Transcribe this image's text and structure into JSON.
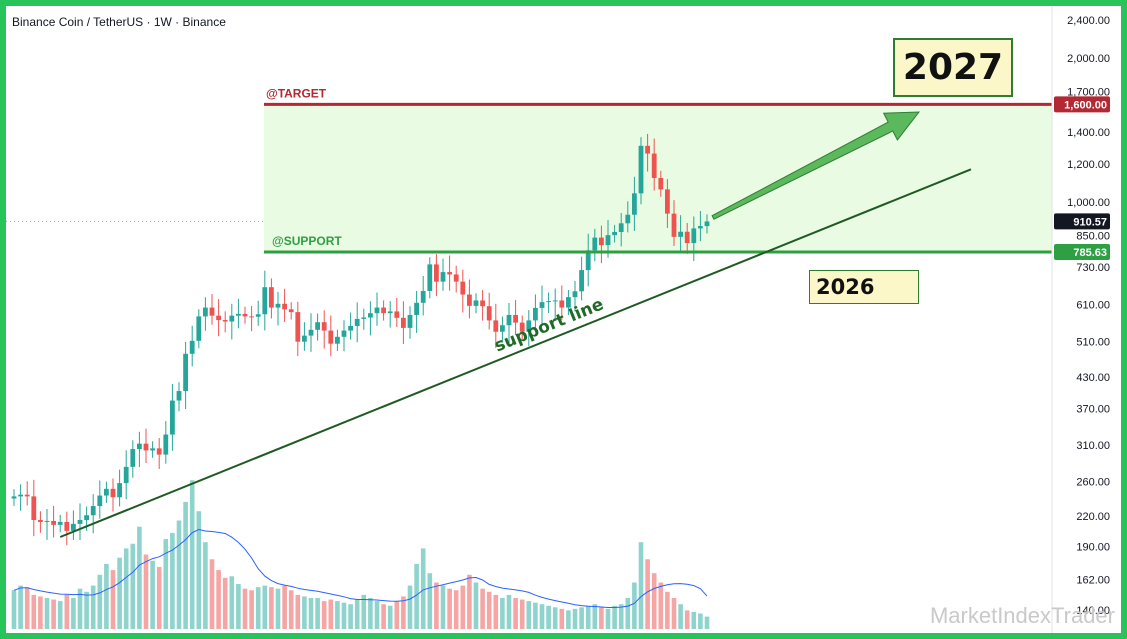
{
  "header": {
    "title": "Binance Coin / TetherUS · 1W · Binance"
  },
  "annotations": {
    "target_label": "@TARGET",
    "support_label": "@SUPPORT",
    "support_line_label": "support line",
    "year_box_top": "2027",
    "year_box_bottom": "2026"
  },
  "watermark": "MarketIndexTrader",
  "colors": {
    "up": "#26a69a",
    "down": "#ef5350",
    "target": "#b22833",
    "support": "#2ea043",
    "zone": "#e9fbe2",
    "trend": "#1f5a23",
    "ma": "#2962ff"
  },
  "chart_data": {
    "type": "candlestick",
    "scale": "log",
    "ylim": [
      140,
      2400
    ],
    "y_ticks": [
      "2,400.00",
      "2,000.00",
      "1,700.00",
      "1,400.00",
      "1,200.00",
      "1,000.00",
      "850.00",
      "730.00",
      "610.00",
      "510.00",
      "430.00",
      "370.00",
      "310.00",
      "260.00",
      "220.00",
      "190.00",
      "162.00",
      "140.00"
    ],
    "y_tick_values": [
      2400,
      2000,
      1700,
      1400,
      1200,
      1000,
      850,
      730,
      610,
      510,
      430,
      370,
      310,
      260,
      220,
      190,
      162,
      140
    ],
    "price_labels": [
      {
        "text": "1,600.00",
        "value": 1600,
        "color": "#b22833"
      },
      {
        "text": "910.57",
        "value": 910.57,
        "color": "#131722"
      },
      {
        "text": "785.63",
        "value": 785.63,
        "color": "#2ea043"
      }
    ],
    "levels": {
      "target": 1600,
      "support": 785.63,
      "current": 910.57
    },
    "closes": [
      242,
      244,
      242,
      216,
      214,
      215,
      211,
      214,
      205,
      212,
      216,
      221,
      231,
      243,
      251,
      241,
      258,
      279,
      304,
      312,
      302,
      305,
      296,
      326,
      384,
      402,
      481,
      512,
      576,
      601,
      578,
      566,
      562,
      578,
      583,
      576,
      575,
      582,
      663,
      601,
      612,
      596,
      588,
      510,
      525,
      540,
      560,
      538,
      505,
      522,
      538,
      550,
      569,
      573,
      585,
      601,
      585,
      590,
      572,
      545,
      580,
      615,
      651,
      740,
      681,
      713,
      705,
      681,
      640,
      606,
      622,
      605,
      565,
      535,
      552,
      580,
      559,
      535,
      565,
      600,
      617,
      620,
      622,
      601,
      632,
      650,
      720,
      792,
      842,
      812,
      852,
      865,
      902,
      940,
      1042,
      1310,
      1262,
      1122,
      1062,
      945,
      845,
      866,
      820,
      880,
      890,
      910
    ],
    "trendline": {
      "from": {
        "week": 7,
        "price": 199
      },
      "to": {
        "week": 145,
        "price": 1170
      }
    },
    "volume_relative": [
      0.25,
      0.28,
      0.27,
      0.22,
      0.21,
      0.2,
      0.19,
      0.18,
      0.22,
      0.2,
      0.26,
      0.24,
      0.28,
      0.35,
      0.42,
      0.38,
      0.46,
      0.52,
      0.55,
      0.66,
      0.48,
      0.44,
      0.4,
      0.58,
      0.62,
      0.7,
      0.82,
      0.96,
      0.76,
      0.56,
      0.45,
      0.38,
      0.33,
      0.34,
      0.29,
      0.26,
      0.25,
      0.27,
      0.28,
      0.27,
      0.26,
      0.28,
      0.25,
      0.22,
      0.21,
      0.2,
      0.2,
      0.18,
      0.19,
      0.18,
      0.17,
      0.16,
      0.19,
      0.22,
      0.2,
      0.18,
      0.16,
      0.15,
      0.18,
      0.21,
      0.28,
      0.42,
      0.52,
      0.36,
      0.3,
      0.28,
      0.26,
      0.25,
      0.28,
      0.35,
      0.3,
      0.26,
      0.24,
      0.22,
      0.2,
      0.22,
      0.2,
      0.19,
      0.18,
      0.17,
      0.16,
      0.15,
      0.14,
      0.13,
      0.12,
      0.13,
      0.14,
      0.15,
      0.16,
      0.14,
      0.13,
      0.15,
      0.16,
      0.2,
      0.3,
      0.56,
      0.45,
      0.36,
      0.3,
      0.24,
      0.2,
      0.16,
      0.12,
      0.11,
      0.1,
      0.08
    ]
  }
}
